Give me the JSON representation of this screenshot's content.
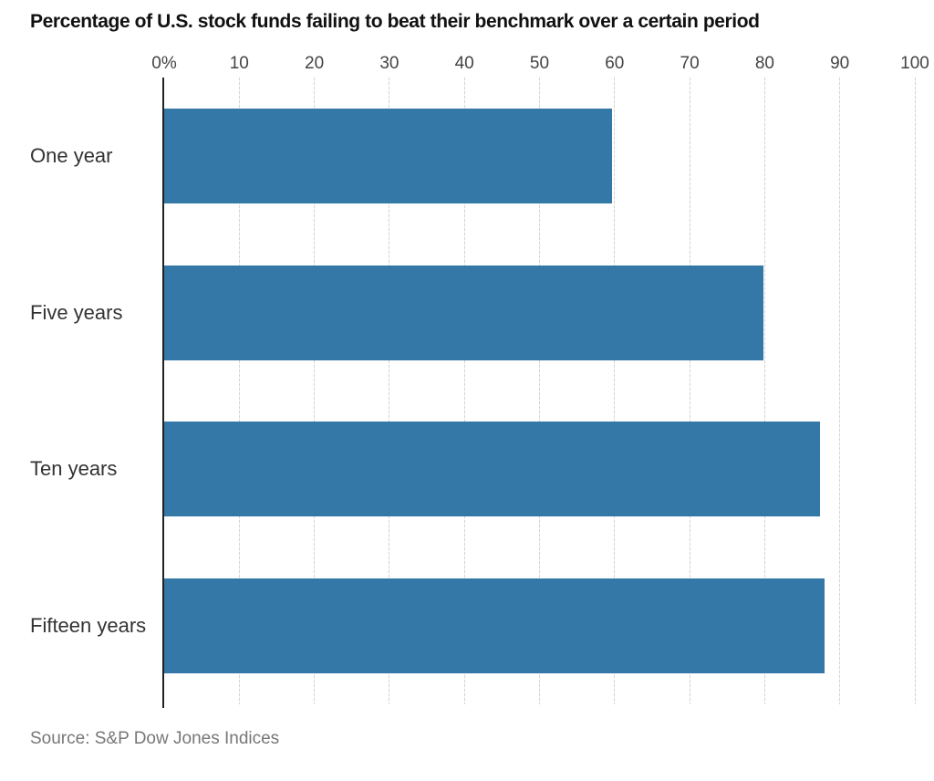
{
  "page": {
    "title": "Percentage of U.S. stock funds failing to beat their benchmark over a certain period",
    "source": "Source: S&P Dow Jones Indices"
  },
  "colors": {
    "bar": "#3478a7",
    "axis": "#222222",
    "gridline": "#d4d4d4",
    "title_text": "#111111",
    "label_text": "#333333",
    "tick_text": "#444444",
    "source_text": "#777777",
    "background": "#ffffff"
  },
  "chart_data": {
    "type": "bar",
    "orientation": "horizontal",
    "title": "Percentage of U.S. stock funds failing to beat their benchmark over a certain period",
    "categories": [
      "One year",
      "Five years",
      "Ten years",
      "Fifteen years"
    ],
    "values": [
      59.6,
      79.8,
      87.4,
      88
    ],
    "unit": "%",
    "xlabel": "",
    "ylabel": "",
    "xlim": [
      0,
      100
    ],
    "xticks": [
      0,
      10,
      20,
      30,
      40,
      50,
      60,
      70,
      80,
      90,
      100
    ],
    "xtick_labels": [
      "0%",
      "10",
      "20",
      "30",
      "40",
      "50",
      "60",
      "70",
      "80",
      "90",
      "100"
    ],
    "grid": true,
    "legend": false,
    "source": "Source: S&P Dow Jones Indices"
  }
}
